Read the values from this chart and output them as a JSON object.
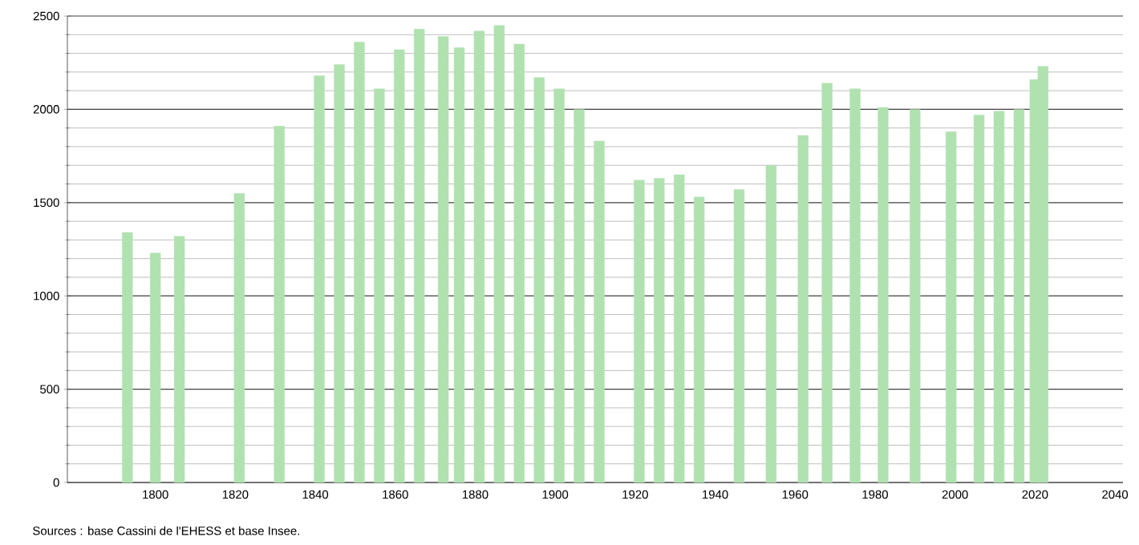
{
  "chart_data": {
    "type": "bar",
    "color": "#b0e2b0",
    "x": [
      1793,
      1800,
      1806,
      1821,
      1831,
      1841,
      1846,
      1851,
      1856,
      1861,
      1866,
      1872,
      1876,
      1881,
      1886,
      1891,
      1896,
      1901,
      1906,
      1911,
      1921,
      1926,
      1931,
      1936,
      1946,
      1954,
      1962,
      1968,
      1975,
      1982,
      1990,
      1999,
      2006,
      2011,
      2016,
      2020,
      2022
    ],
    "values": [
      1340,
      1230,
      1320,
      1550,
      1910,
      2180,
      2240,
      2360,
      2110,
      2320,
      2430,
      2390,
      2330,
      2420,
      2450,
      2350,
      2170,
      2110,
      2000,
      1830,
      1620,
      1630,
      1650,
      1530,
      1570,
      1700,
      1860,
      2140,
      2110,
      2010,
      2000,
      1880,
      1970,
      1990,
      2000,
      2160,
      2230
    ],
    "xlim": [
      1778,
      2042
    ],
    "xticks": [
      1800,
      1820,
      1840,
      1860,
      1880,
      1900,
      1920,
      1940,
      1960,
      1980,
      2000,
      2020,
      2040
    ],
    "ylim": [
      0,
      2500
    ],
    "yticks": [
      0,
      500,
      1000,
      1500,
      2000,
      2500
    ],
    "grid": "y",
    "annotations": [
      "Sources : base Cassini de l'EHESS et base Insee."
    ]
  }
}
